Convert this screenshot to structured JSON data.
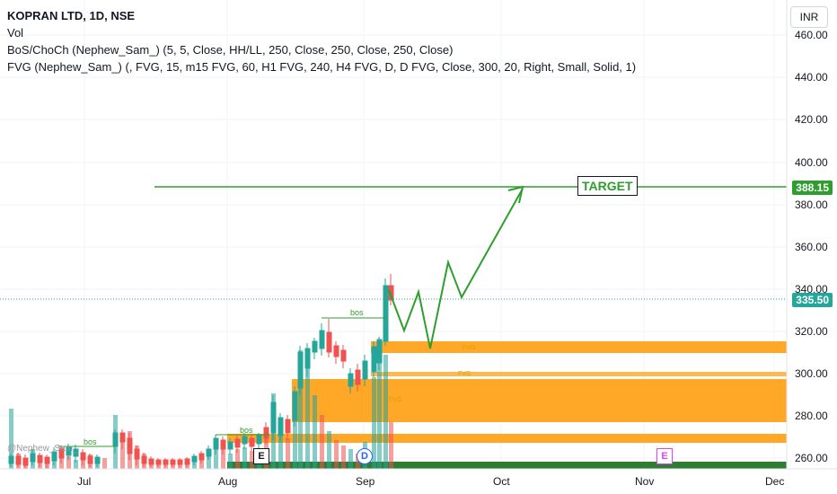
{
  "header": {
    "symbol_title": "KOPRAN LTD, 1D, NSE",
    "indicator_vol": "Vol",
    "indicator_bos": "BoS/ChoCh (Nephew_Sam_) (5, 5, Close, HH/LL, 250, Close, 250, Close, 250, Close)",
    "indicator_fvg": "FVG (Nephew_Sam_) (, FVG, 15, m15 FVG, 60, H1 FVG, 240, H4 FVG, D, D FVG, Close, 300, 20, Right, Small, Solid, 1)"
  },
  "currency_button": "INR",
  "price_axis": {
    "ticks": [
      "460.00",
      "440.00",
      "420.00",
      "400.00",
      "380.00",
      "360.00",
      "340.00",
      "320.00",
      "300.00",
      "280.00",
      "260.00"
    ],
    "target_price": "388.15",
    "last_price": "335.50"
  },
  "time_axis": {
    "labels": [
      "Jul",
      "Aug",
      "Sep",
      "Oct",
      "Nov",
      "Dec"
    ]
  },
  "annotations": {
    "target_label": "TARGET",
    "bos_labels": [
      "bos",
      "bos",
      "bos"
    ],
    "fvg_labels": [
      "FVG",
      "FVG",
      "FVG"
    ],
    "events": [
      "E",
      "D",
      "E"
    ],
    "watermark": "@Nephew_Sam_"
  },
  "colors": {
    "up": "#26a69a",
    "down": "#ef5350",
    "target_line": "#2e9e2e",
    "fvg_zone": "#ffa726",
    "last_price_tag": "#26a69a"
  }
}
